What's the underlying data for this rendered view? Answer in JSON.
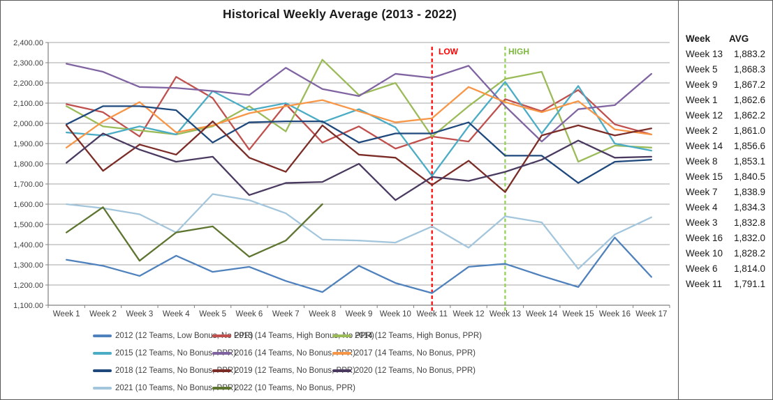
{
  "title": "Historical Weekly Average (2013 - 2022)",
  "annotations": {
    "low": {
      "label": "LOW",
      "week_index": 10,
      "color": "#FF0000"
    },
    "high": {
      "label": "HIGH",
      "week_index": 12,
      "color": "#92D050"
    }
  },
  "side_table": {
    "headers": [
      "Week",
      "AVG"
    ],
    "rows": [
      [
        "Week 13",
        "1,883.2"
      ],
      [
        "Week 5",
        "1,868.3"
      ],
      [
        "Week 9",
        "1,867.2"
      ],
      [
        "Week 1",
        "1,862.6"
      ],
      [
        "Week 12",
        "1,862.2"
      ],
      [
        "Week 2",
        "1,861.0"
      ],
      [
        "Week 14",
        "1,856.6"
      ],
      [
        "Week 8",
        "1,853.1"
      ],
      [
        "Week 15",
        "1,840.5"
      ],
      [
        "Week 7",
        "1,838.9"
      ],
      [
        "Week 4",
        "1,834.3"
      ],
      [
        "Week 3",
        "1,832.8"
      ],
      [
        "Week 16",
        "1,832.0"
      ],
      [
        "Week 10",
        "1,828.2"
      ],
      [
        "Week 6",
        "1,814.0"
      ],
      [
        "Week 11",
        "1,791.1"
      ]
    ]
  },
  "chart_data": {
    "type": "line",
    "title": "Historical Weekly Average (2013 - 2022)",
    "xlabel": "",
    "ylabel": "",
    "ylim": [
      1100,
      2400
    ],
    "ytick_step": 100,
    "grid": true,
    "legend_position": "bottom",
    "categories": [
      "Week 1",
      "Week 2",
      "Week 3",
      "Week 4",
      "Week 5",
      "Week 6",
      "Week 7",
      "Week 8",
      "Week 9",
      "Week 10",
      "Week 11",
      "Week 12",
      "Week 13",
      "Week 14",
      "Week 15",
      "Week 16",
      "Week 17"
    ],
    "series": [
      {
        "name": "2012 (12 Teams, Low Bonus, No PPR)",
        "color": "#4F81BD",
        "values": [
          1325,
          1295,
          1245,
          1345,
          1265,
          1290,
          1220,
          1165,
          1295,
          1210,
          1160,
          1290,
          1305,
          1245,
          1190,
          1435,
          1240
        ]
      },
      {
        "name": "2013 (14 Teams, High Bonus, No PPR)",
        "color": "#C0504D",
        "values": [
          2095,
          2055,
          1935,
          2230,
          2125,
          1870,
          2095,
          1905,
          1985,
          1875,
          1935,
          1910,
          2120,
          2060,
          2165,
          1995,
          1945
        ]
      },
      {
        "name": "2014 (12 Teams, High Bonus, PPR)",
        "color": "#9BBB59",
        "values": [
          2085,
          1985,
          1965,
          1945,
          1985,
          2085,
          1960,
          2315,
          2140,
          2200,
          1935,
          2085,
          2220,
          2255,
          1810,
          1890,
          1880
        ]
      },
      {
        "name": "2015 (12 Teams, No Bonus, PPR)",
        "color": "#4BACC6",
        "values": [
          1955,
          1940,
          1985,
          1945,
          2160,
          2065,
          2100,
          2005,
          2070,
          1980,
          1740,
          1985,
          2205,
          1950,
          2185,
          1900,
          1865
        ]
      },
      {
        "name": "2016 (14 Teams, No Bonus, PPR)",
        "color": "#8064A2",
        "values": [
          2295,
          2255,
          2180,
          2175,
          2160,
          2140,
          2275,
          2170,
          2135,
          2245,
          2225,
          2285,
          2085,
          1910,
          2070,
          2090,
          2245
        ]
      },
      {
        "name": "2017 (14 Teams, No Bonus, PPR)",
        "color": "#F79646",
        "values": [
          1880,
          2010,
          2105,
          1955,
          1990,
          2050,
          2085,
          2115,
          2060,
          2005,
          2025,
          2180,
          2105,
          2055,
          2110,
          1970,
          1945
        ]
      },
      {
        "name": "2018 (12 Teams, No Bonus, PPR)",
        "color": "#1F497D",
        "values": [
          1995,
          2085,
          2085,
          2065,
          1905,
          2005,
          2010,
          2010,
          1905,
          1950,
          1950,
          2005,
          1840,
          1840,
          1705,
          1810,
          1820
        ]
      },
      {
        "name": "2019 (12 Teams, No Bonus, PPR)",
        "color": "#7B2C27",
        "values": [
          1990,
          1765,
          1895,
          1845,
          2010,
          1830,
          1760,
          1990,
          1845,
          1830,
          1695,
          1815,
          1660,
          1940,
          1990,
          1940,
          1975
        ]
      },
      {
        "name": "2020 (12 Teams, No Bonus, PPR)",
        "color": "#4A3A60",
        "values": [
          1805,
          1950,
          1870,
          1810,
          1835,
          1645,
          1705,
          1710,
          1800,
          1620,
          1735,
          1715,
          1760,
          1820,
          1915,
          1830,
          1835
        ]
      },
      {
        "name": "2021 (10 Teams, No Bonus, PPR)",
        "color": "#A3C6DC",
        "values": [
          1600,
          1580,
          1550,
          1460,
          1650,
          1620,
          1555,
          1425,
          1420,
          1410,
          1490,
          1385,
          1540,
          1510,
          1280,
          1450,
          1535
        ]
      },
      {
        "name": "2022 (10 Teams, No Bonus, PPR)",
        "color": "#5E7530",
        "values": [
          1460,
          1585,
          1320,
          1460,
          1490,
          1340,
          1420,
          1600,
          null,
          null,
          null,
          null,
          null,
          null,
          null,
          null,
          null
        ]
      }
    ]
  },
  "layout": {
    "legend_cols_x": [
      132,
      303,
      475
    ],
    "legend_rows_y": [
      9,
      34,
      59,
      84
    ]
  }
}
